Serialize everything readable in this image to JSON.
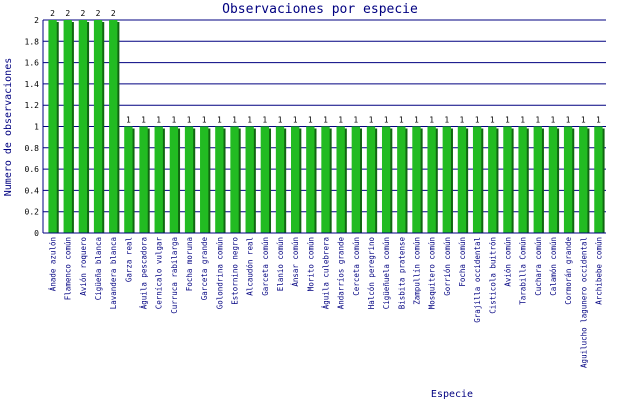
{
  "colors": {
    "bar": "#22bb22",
    "bar_shadow": "#116611",
    "grid": "#000080",
    "text": "#000080"
  },
  "chart_data": {
    "type": "bar",
    "title": "Observaciones por especie",
    "xlabel": "Especie",
    "ylabel": "Numero de observaciones",
    "ylim": [
      0,
      2
    ],
    "yticks": [
      "0",
      "0.2",
      "0.4",
      "0.6",
      "0.8",
      "1",
      "1.2",
      "1.4",
      "1.6",
      "1.8",
      "2"
    ],
    "grid": true,
    "legend": "none",
    "categories": [
      "Ánade azulón",
      "Flamenco común",
      "Avión roquero",
      "Cigüeña blanca",
      "Lavandera blanca",
      "Garza real",
      "Águila pescadora",
      "Cernícalo vulgar",
      "Curruca rabilarga",
      "Focha moruna",
      "Garceta grande",
      "Golondrina común",
      "Estornino negro",
      "Alcaudón real",
      "Garceta común",
      "Elanio común",
      "Ánsar común",
      "Morito común",
      "Águila culebrera",
      "Andarríos grande",
      "Cerceta común",
      "Halcón peregrino",
      "Cigüeñuela común",
      "Bisbita pratense",
      "Zampullín común",
      "Mosquitero común",
      "Gorrión común",
      "Focha común",
      "Grajilla occidental",
      "Cisticola buitrón",
      "Avión común",
      "Tarabilla Común",
      "Cuchara común",
      "Calamón común",
      "Cormorán grande",
      "Aguilucho lagunero occidental",
      "Archibebe común"
    ],
    "values": [
      2,
      2,
      2,
      2,
      2,
      1,
      1,
      1,
      1,
      1,
      1,
      1,
      1,
      1,
      1,
      1,
      1,
      1,
      1,
      1,
      1,
      1,
      1,
      1,
      1,
      1,
      1,
      1,
      1,
      1,
      1,
      1,
      1,
      1,
      1,
      1,
      1
    ],
    "value_labels": [
      "2",
      "2",
      "2",
      "2",
      "2",
      "1",
      "1",
      "1",
      "1",
      "1",
      "1",
      "1",
      "1",
      "1",
      "1",
      "1",
      "1",
      "1",
      "1",
      "1",
      "1",
      "1",
      "1",
      "1",
      "1",
      "1",
      "1",
      "1",
      "1",
      "1",
      "1",
      "1",
      "1",
      "1",
      "1",
      "1",
      "1"
    ]
  }
}
